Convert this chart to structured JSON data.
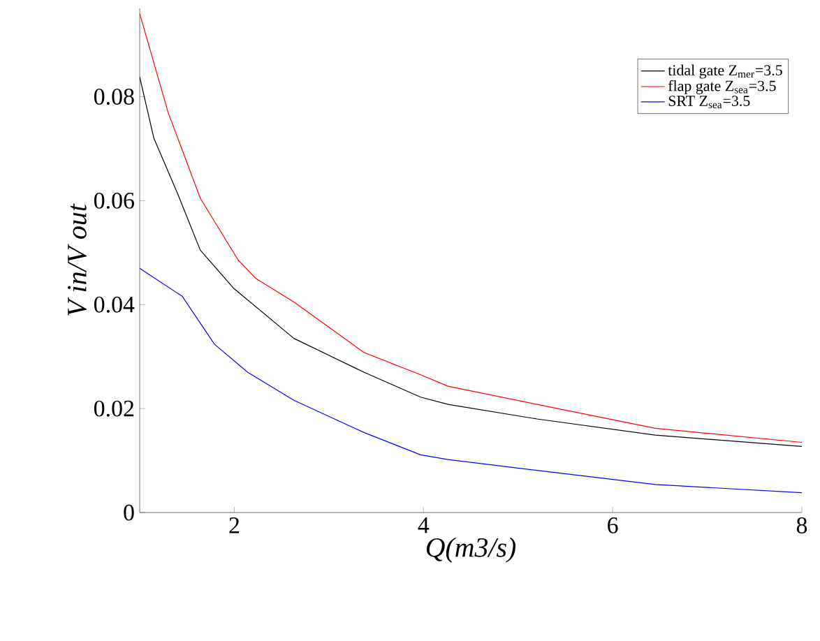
{
  "chart_data": {
    "type": "line",
    "xlabel": "Q(m3/s)",
    "ylabel": "V in/V out",
    "xlim": [
      1,
      8
    ],
    "xticks": [
      2,
      4,
      6,
      8
    ],
    "ylim": [
      0,
      0.097
    ],
    "yticks": [
      0,
      0.02,
      0.04,
      0.06,
      0.08
    ],
    "grid": false,
    "legend": "top right",
    "marker": "none",
    "line_style": "solid",
    "series": [
      {
        "name": "tidal gate Z$_{mer}$=3.5",
        "color": "#000000",
        "x": [
          1,
          1.15,
          1.4,
          1.64,
          1.99,
          2.63,
          3.37,
          3.97,
          4.26,
          5.2,
          6.45,
          8
        ],
        "values": [
          0.0838,
          0.072,
          0.0614,
          0.0505,
          0.0432,
          0.0335,
          0.027,
          0.0222,
          0.0208,
          0.018,
          0.0149,
          0.0127
        ]
      },
      {
        "name": "flap gate Z$_{sea}$=3.5",
        "color": "#ff0000",
        "x": [
          1,
          1.3,
          1.64,
          2.04,
          2.23,
          2.63,
          3.37,
          3.97,
          4.26,
          5.2,
          6.45,
          8
        ],
        "values": [
          0.096,
          0.077,
          0.0605,
          0.0486,
          0.045,
          0.0405,
          0.0308,
          0.0265,
          0.0243,
          0.0208,
          0.0162,
          0.0135
        ]
      },
      {
        "name": "SRT Z$_{sea}$=3.5",
        "color": "#0000ff",
        "x": [
          1,
          1.45,
          1.79,
          2.14,
          2.63,
          3.37,
          3.97,
          4.26,
          5.2,
          6.45,
          8
        ],
        "values": [
          0.047,
          0.0416,
          0.0324,
          0.027,
          0.0216,
          0.0154,
          0.0111,
          0.0102,
          0.0081,
          0.0054,
          0.0038
        ]
      }
    ]
  }
}
